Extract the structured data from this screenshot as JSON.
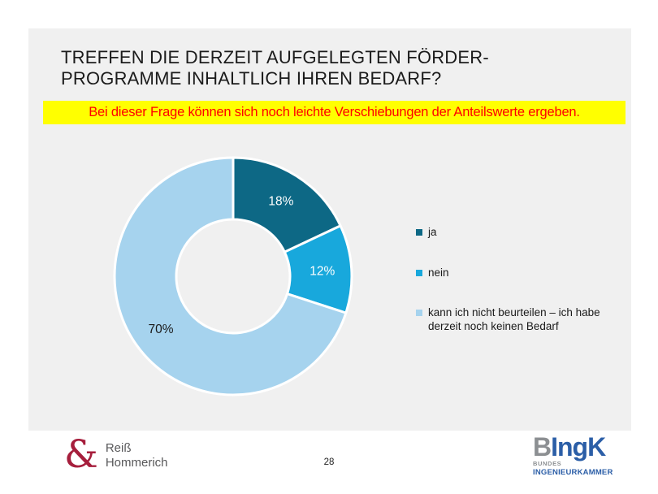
{
  "slide": {
    "title": "TREFFEN DIE DERZEIT AUFGELEGTEN FÖRDER-\nPROGRAMME INHALTLICH IHREN BEDARF?",
    "banner_text": "Bei dieser Frage können sich noch leichte Verschiebungen der Anteilswerte ergeben.",
    "page_number": "28"
  },
  "colors": {
    "panel_bg": "#F0F0F0",
    "banner_bg": "#FFFF00",
    "banner_text": "#FF0000",
    "series_ja": "#0D6885",
    "series_nein": "#18A8DC",
    "series_kann_ich_nicht_beurteilen": "#A6D3EE"
  },
  "chart_data": {
    "type": "pie",
    "subtype": "donut",
    "title": "",
    "categories": [
      "ja",
      "nein",
      "kann ich nicht beurteilen – ich habe derzeit noch keinen Bedarf"
    ],
    "values": [
      18,
      12,
      70
    ],
    "value_labels": [
      "18%",
      "12%",
      "70%"
    ],
    "colors": [
      "#0D6885",
      "#18A8DC",
      "#A6D3EE"
    ],
    "value_label_colors": [
      "#FFFFFF",
      "#FFFFFF",
      "#1A1A1A"
    ],
    "start_angle_deg": 0,
    "direction": "clockwise",
    "inner_radius_ratio": 0.48,
    "grid": false,
    "legend_position": "right",
    "legend_items": [
      {
        "label": "ja",
        "color": "#0D6885"
      },
      {
        "label": "nein",
        "color": "#18A8DC"
      },
      {
        "label": "kann ich nicht beurteilen – ich habe\nderzeit noch keinen Bedarf",
        "color": "#A6D3EE"
      }
    ]
  },
  "footer": {
    "rh_logo": {
      "ampersand": "&",
      "line1": "Reiß",
      "line2": "Hommerich",
      "amp_color": "#A61E3C",
      "text_color": "#58585A"
    },
    "bingk_logo": {
      "part_gray": "B",
      "part_blue": "IngK",
      "subline_gray": "BUNDES",
      "subline_blue": "INGENIEURKAMMER",
      "gray": "#8C8F92",
      "blue": "#2B5EA7"
    }
  }
}
